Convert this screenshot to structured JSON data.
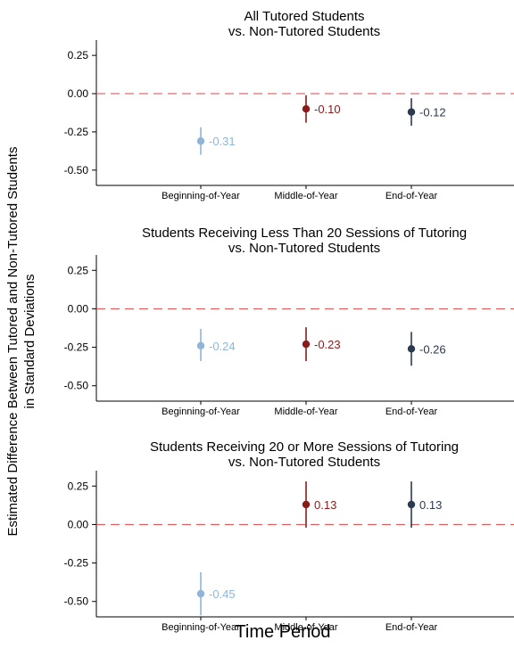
{
  "figure": {
    "ylabel_line1": "Estimated Difference Between Tutored and Non-Tutored Students",
    "ylabel_line2": "in Standard Deviations",
    "xlabel": "Time Period"
  },
  "colors": {
    "beginning": "#8fb6d8",
    "middle": "#8b1a1a",
    "end": "#2b3a4f",
    "reference_line": "#e05a5a",
    "axis": "#000000"
  },
  "chart_data": [
    {
      "type": "scatter",
      "title_lines": [
        "All Tutored Students",
        "vs. Non-Tutored Students"
      ],
      "categories": [
        "Beginning-of-Year",
        "Middle-of-Year",
        "End-of-Year"
      ],
      "values": [
        -0.31,
        -0.1,
        -0.12
      ],
      "labels": [
        "-0.31",
        "-0.10",
        "-0.12"
      ],
      "ci_low": [
        -0.4,
        -0.19,
        -0.21
      ],
      "ci_high": [
        -0.22,
        -0.01,
        -0.03
      ],
      "yticks": [
        0.25,
        0.0,
        -0.25,
        -0.5
      ],
      "ytick_labels": [
        "0.25",
        "0.00",
        "-0.25",
        "-0.50"
      ],
      "ylim": [
        -0.6,
        0.35
      ],
      "reference_line": 0
    },
    {
      "type": "scatter",
      "title_lines": [
        "Students Receiving Less Than 20 Sessions of Tutoring",
        "vs. Non-Tutored Students"
      ],
      "categories": [
        "Beginning-of-Year",
        "Middle-of-Year",
        "End-of-Year"
      ],
      "values": [
        -0.24,
        -0.23,
        -0.26
      ],
      "labels": [
        "-0.24",
        "-0.23",
        "-0.26"
      ],
      "ci_low": [
        -0.34,
        -0.34,
        -0.37
      ],
      "ci_high": [
        -0.13,
        -0.12,
        -0.15
      ],
      "yticks": [
        0.25,
        0.0,
        -0.25,
        -0.5
      ],
      "ytick_labels": [
        "0.25",
        "0.00",
        "-0.25",
        "-0.50"
      ],
      "ylim": [
        -0.6,
        0.35
      ],
      "reference_line": 0
    },
    {
      "type": "scatter",
      "title_lines": [
        "Students Receiving 20 or More Sessions of Tutoring",
        "vs. Non-Tutored Students"
      ],
      "categories": [
        "Beginning-of-Year",
        "Middle-of-Year",
        "End-of-Year"
      ],
      "values": [
        -0.45,
        0.13,
        0.13
      ],
      "labels": [
        "-0.45",
        "0.13",
        "0.13"
      ],
      "ci_low": [
        -0.59,
        -0.02,
        -0.02
      ],
      "ci_high": [
        -0.31,
        0.28,
        0.28
      ],
      "yticks": [
        0.25,
        0.0,
        -0.25,
        -0.5
      ],
      "ytick_labels": [
        "0.25",
        "0.00",
        "-0.25",
        "-0.50"
      ],
      "ylim": [
        -0.6,
        0.35
      ],
      "reference_line": 0
    }
  ]
}
